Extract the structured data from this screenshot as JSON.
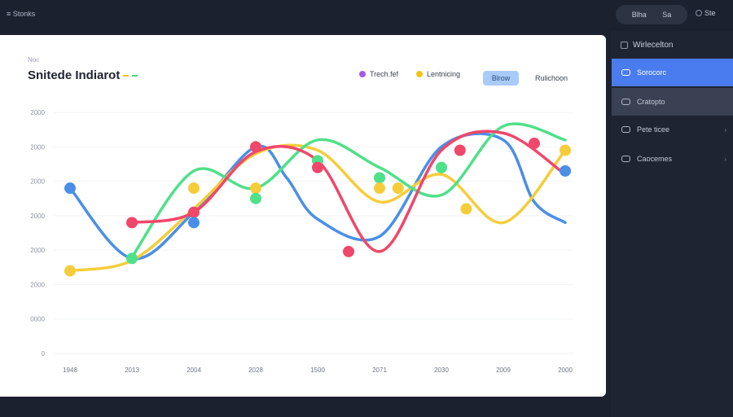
{
  "header": {
    "app_title": "≡ Stonks",
    "pill": [
      "Blha",
      "Sa"
    ],
    "user": "Ste"
  },
  "card": {
    "kicker": "Noc",
    "title": "Snitede Indiarot"
  },
  "legend": {
    "items": [
      {
        "label": "Trech.fef",
        "color": "#a35be6"
      },
      {
        "label": "Lentnicing",
        "color": "#f0c419"
      }
    ],
    "button": "Blrow",
    "link": "Rulichoon"
  },
  "sidebar": {
    "header": "Wirlecelton",
    "items": [
      {
        "label": "Sorocorc",
        "state": "active",
        "chevron": ""
      },
      {
        "label": "Cratopto",
        "state": "hover",
        "chevron": ""
      },
      {
        "label": "Pete ticee",
        "state": "",
        "chevron": "›"
      },
      {
        "label": "Caocemes",
        "state": "",
        "chevron": "›"
      }
    ]
  },
  "colors": {
    "blue": "#4a8fe6",
    "yellow": "#f5cd3a",
    "green": "#4fe08a",
    "red": "#f0476a",
    "purple": "#a35be6"
  },
  "chart_data": {
    "type": "line",
    "title": "Snitede Indiarot",
    "x": [
      "1948",
      "2013",
      "2004",
      "2028",
      "1500",
      "2071",
      "2030",
      "2009",
      "2000"
    ],
    "y_ticks": [
      "0",
      "0000",
      "2000",
      "2000",
      "2000",
      "2000",
      "2000",
      "2000"
    ],
    "ylim": [
      0,
      3500
    ],
    "grid": true,
    "series": [
      {
        "color": "#4a8fe6",
        "points": [
          [
            0,
            2400
          ],
          [
            1,
            1380
          ],
          [
            2,
            2050
          ],
          [
            3,
            3000
          ],
          [
            3.5,
            2550
          ],
          [
            4,
            1950
          ],
          [
            5,
            1700
          ],
          [
            6,
            3000
          ],
          [
            7,
            3100
          ],
          [
            7.5,
            2200
          ],
          [
            8,
            1900
          ]
        ]
      },
      {
        "color": "#f5cd3a",
        "points": [
          [
            0,
            1200
          ],
          [
            1,
            1350
          ],
          [
            2,
            2100
          ],
          [
            3,
            2900
          ],
          [
            4,
            2950
          ],
          [
            5,
            2200
          ],
          [
            6,
            2600
          ],
          [
            7,
            1900
          ],
          [
            8,
            2950
          ]
        ]
      },
      {
        "color": "#4fe08a",
        "points": [
          [
            1,
            1400
          ],
          [
            2,
            2650
          ],
          [
            3,
            2400
          ],
          [
            4,
            3100
          ],
          [
            5,
            2700
          ],
          [
            6,
            2300
          ],
          [
            7,
            3300
          ],
          [
            8,
            3100
          ]
        ]
      },
      {
        "color": "#f0476a",
        "points": [
          [
            1,
            1900
          ],
          [
            2,
            2050
          ],
          [
            3,
            2930
          ],
          [
            4,
            2800
          ],
          [
            5,
            1480
          ],
          [
            6,
            2950
          ],
          [
            7,
            3200
          ],
          [
            8,
            2600
          ]
        ]
      }
    ],
    "markers": [
      {
        "x": 0,
        "y": 2400,
        "color": "#4a8fe6"
      },
      {
        "x": 0,
        "y": 1200,
        "color": "#f5cd3a"
      },
      {
        "x": 1,
        "y": 1900,
        "color": "#f0476a"
      },
      {
        "x": 1,
        "y": 1380,
        "color": "#4fe08a"
      },
      {
        "x": 2,
        "y": 2400,
        "color": "#f5cd3a"
      },
      {
        "x": 2,
        "y": 2050,
        "color": "#f0476a"
      },
      {
        "x": 2,
        "y": 1900,
        "color": "#4a8fe6"
      },
      {
        "x": 3,
        "y": 3000,
        "color": "#f0476a"
      },
      {
        "x": 3,
        "y": 2400,
        "color": "#f5cd3a"
      },
      {
        "x": 3,
        "y": 2250,
        "color": "#4fe08a"
      },
      {
        "x": 4,
        "y": 2800,
        "color": "#4fe08a"
      },
      {
        "x": 4,
        "y": 2700,
        "color": "#f0476a"
      },
      {
        "x": 4.5,
        "y": 1480,
        "color": "#f0476a"
      },
      {
        "x": 5,
        "y": 2550,
        "color": "#4fe08a"
      },
      {
        "x": 5,
        "y": 2400,
        "color": "#f5cd3a"
      },
      {
        "x": 5.3,
        "y": 2400,
        "color": "#f5cd3a"
      },
      {
        "x": 6,
        "y": 2700,
        "color": "#4fe08a"
      },
      {
        "x": 6.3,
        "y": 2950,
        "color": "#f0476a"
      },
      {
        "x": 6.4,
        "y": 2100,
        "color": "#f5cd3a"
      },
      {
        "x": 7.5,
        "y": 3050,
        "color": "#f0476a"
      },
      {
        "x": 8,
        "y": 2950,
        "color": "#f5cd3a"
      },
      {
        "x": 8,
        "y": 2650,
        "color": "#4a8fe6"
      }
    ]
  }
}
